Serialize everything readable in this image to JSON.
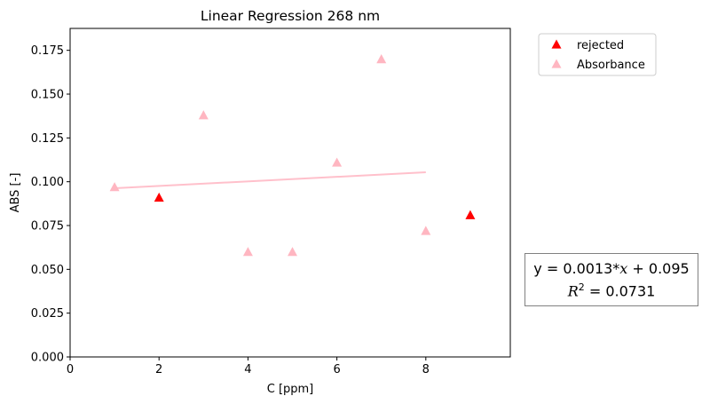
{
  "chart_data": {
    "type": "scatter",
    "title": "Linear Regression 268 nm",
    "xlabel": "C [ppm]",
    "ylabel": "ABS [-]",
    "xlim": [
      0,
      9.9
    ],
    "ylim": [
      0,
      0.1875
    ],
    "xticks": [
      0,
      2,
      4,
      6,
      8
    ],
    "yticks": [
      0.0,
      0.025,
      0.05,
      0.075,
      0.1,
      0.125,
      0.15,
      0.175
    ],
    "ytick_labels": [
      "0.000",
      "0.025",
      "0.050",
      "0.075",
      "0.100",
      "0.125",
      "0.150",
      "0.175"
    ],
    "xtick_labels": [
      "0",
      "2",
      "4",
      "6",
      "8"
    ],
    "grid": false,
    "legend_position": "outside-top-right",
    "series": [
      {
        "name": "rejected",
        "marker": "triangle",
        "color": "#ff0000",
        "x": [
          2,
          9
        ],
        "y": [
          0.091,
          0.081
        ]
      },
      {
        "name": "Absorbance",
        "marker": "triangle",
        "color": "#ffb6c1",
        "x": [
          1,
          3,
          4,
          5,
          6,
          7,
          8
        ],
        "y": [
          0.097,
          0.138,
          0.06,
          0.06,
          0.111,
          0.17,
          0.072
        ]
      }
    ],
    "fit_line": {
      "color": "#ffc0cb",
      "slope": 0.0013,
      "intercept": 0.095,
      "x_range": [
        1,
        8
      ]
    },
    "annotation": {
      "equation_prefix": "y = 0.0013*",
      "equation_var": "x",
      "equation_suffix": " + 0.095",
      "r2_label": "R",
      "r2_exp": "2",
      "r2_value": " = 0.0731"
    }
  }
}
